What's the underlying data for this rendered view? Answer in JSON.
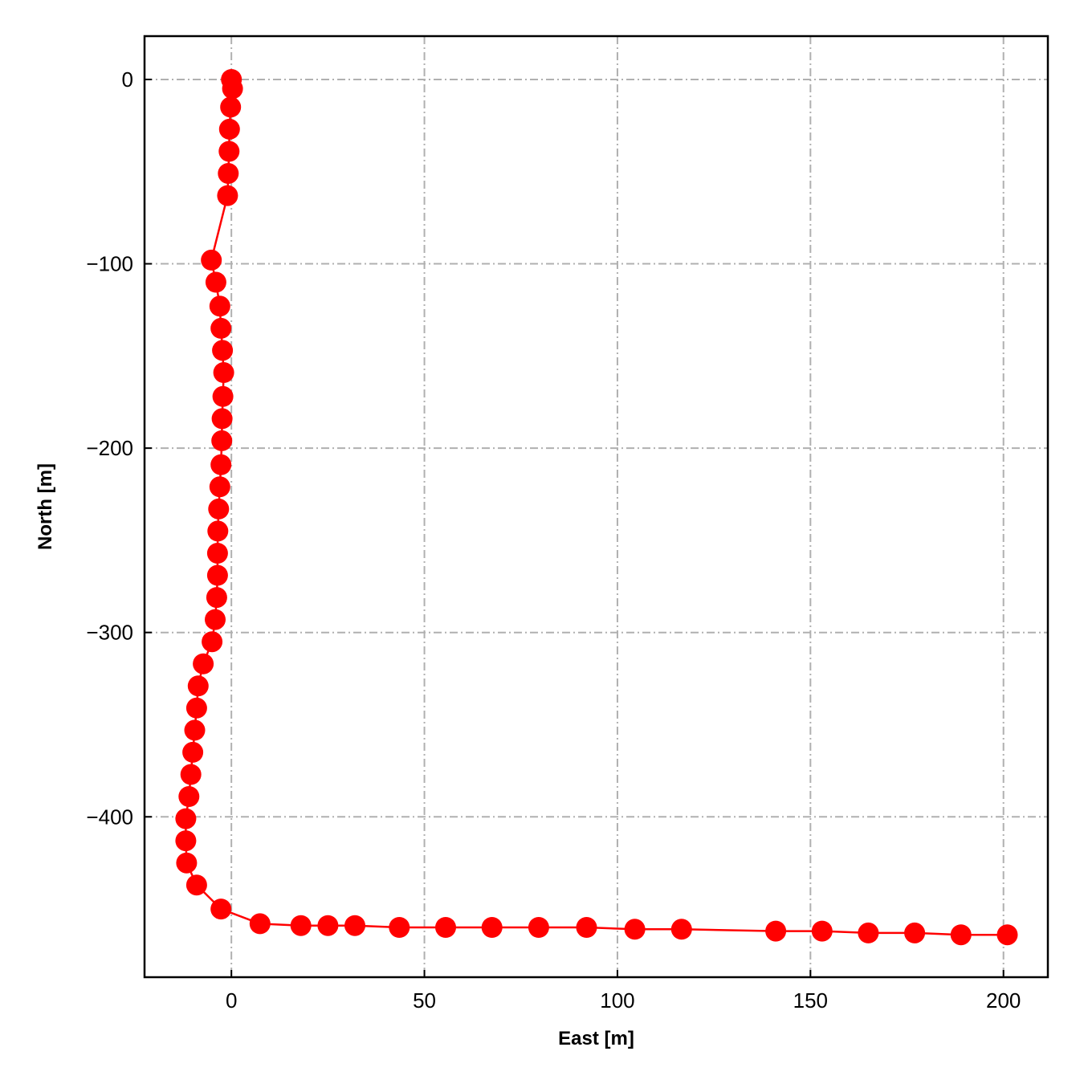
{
  "chart_data": {
    "type": "line",
    "title": "",
    "xlabel": "East [m]",
    "ylabel": "North [m]",
    "xlim": [
      -22.5,
      211.5
    ],
    "ylim": [
      -487,
      23.5
    ],
    "xticks": [
      0,
      50,
      100,
      150,
      200
    ],
    "yticks": [
      0,
      -100,
      -200,
      -300,
      -400
    ],
    "xtick_labels": [
      "0",
      "50",
      "100",
      "150",
      "200"
    ],
    "ytick_labels": [
      "0",
      "−100",
      "−200",
      "−300",
      "−400"
    ],
    "grid": true,
    "grid_style": "dash-dot",
    "legend": "none",
    "colors": {
      "series": "#ff0000",
      "grid": "#b0b0b0",
      "axes": "#000000"
    },
    "series": [
      {
        "marker": "circle",
        "x": [
          0.0,
          0.3,
          -0.2,
          -0.5,
          -0.6,
          -0.8,
          -1.0,
          -5.2,
          -4.0,
          -3.0,
          -2.7,
          -2.3,
          -2.0,
          -2.2,
          -2.4,
          -2.5,
          -2.7,
          -3.0,
          -3.3,
          -3.5,
          -3.6,
          -3.6,
          -3.8,
          -4.2,
          -5.0,
          -7.3,
          -8.6,
          -9.0,
          -9.5,
          -10.0,
          -10.5,
          -11.0,
          -11.8,
          -11.8,
          -11.6,
          -9.0,
          -2.7,
          7.4,
          18.0,
          25.0,
          32.0,
          43.5,
          55.5,
          67.5,
          79.6,
          92.0,
          104.5,
          116.6,
          141.0,
          153.0,
          165.0,
          177.0,
          189.0,
          201.0
        ],
        "y": [
          0,
          -5,
          -15,
          -27,
          -39,
          -51,
          -63,
          -98,
          -110,
          -123,
          -135,
          -147,
          -159,
          -172,
          -184,
          -196,
          -209,
          -221,
          -233,
          -245,
          -257,
          -269,
          -281,
          -293,
          -305,
          -317,
          -329,
          -341,
          -353,
          -365,
          -377,
          -389,
          -401,
          -413,
          -425,
          -437,
          -450,
          -458,
          -459,
          -459,
          -459,
          -460,
          -460,
          -460,
          -460,
          -460,
          -461,
          -461,
          -462,
          -462,
          -463,
          -463,
          -464,
          -464
        ]
      }
    ]
  }
}
